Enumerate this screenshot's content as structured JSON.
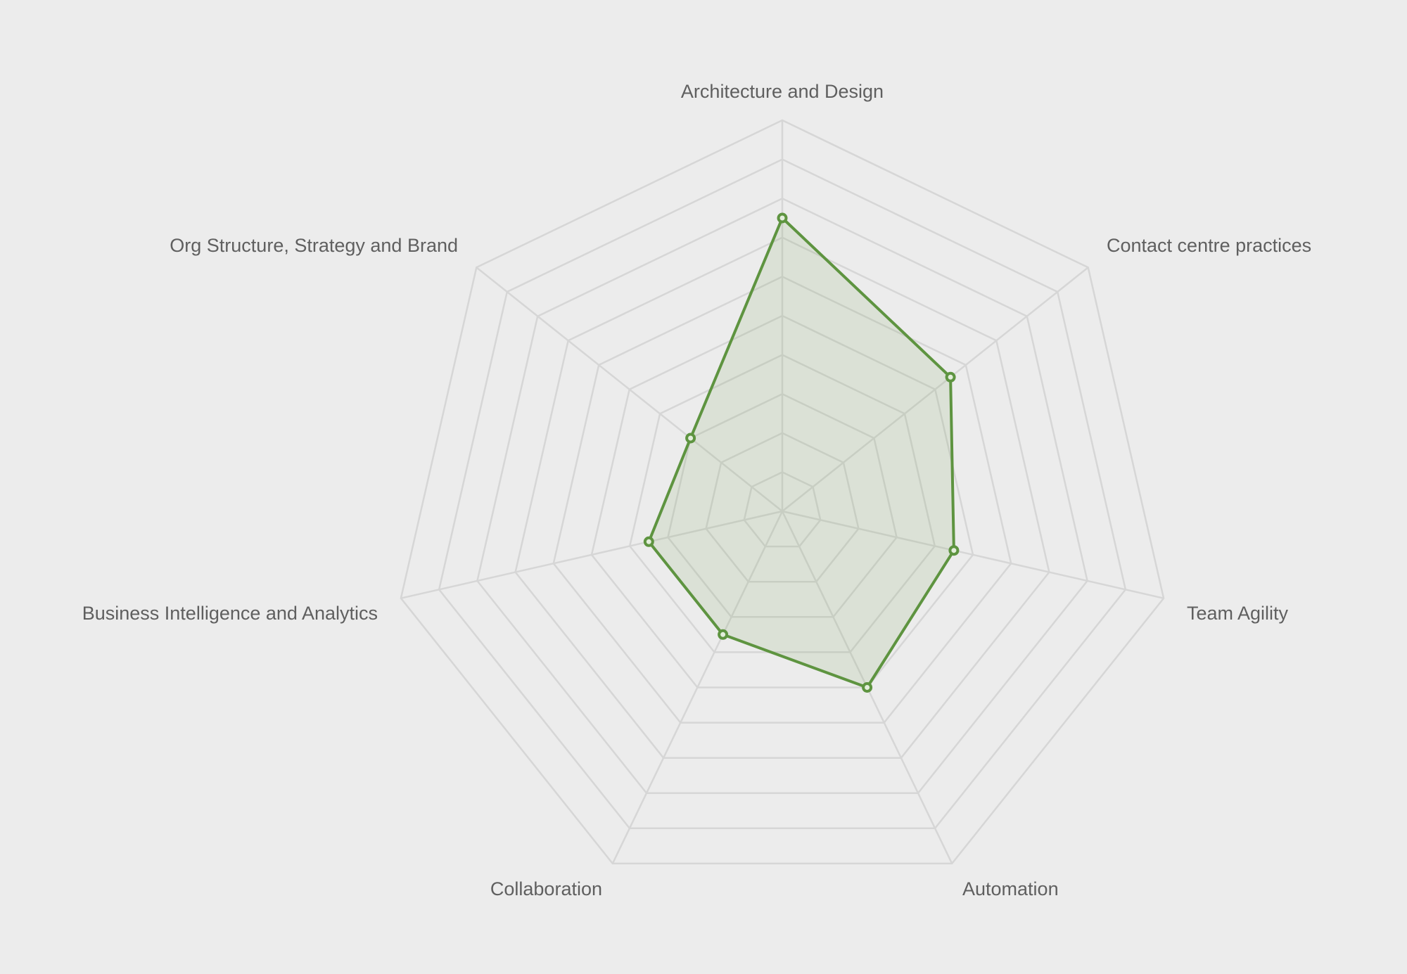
{
  "chart_data": {
    "type": "radar",
    "axes": [
      "Architecture and Design",
      "Contact centre practices",
      "Team Agility",
      "Automation",
      "Collaboration",
      "Business Intelligence and Analytics",
      "Org Structure, Strategy and Brand"
    ],
    "scale": {
      "min": 0,
      "max": 10,
      "rings": 10,
      "grid": true,
      "axis_labels_shown": false
    },
    "series": [
      {
        "values": [
          7.5,
          5.5,
          4.5,
          5.0,
          3.5,
          3.5,
          3.0
        ],
        "color": "#5e9440",
        "fill": "#6a9a48",
        "fill_opacity": 0.13
      }
    ],
    "legend": "none"
  },
  "colors": {
    "background": "#ececec",
    "grid": "#d6d6d6",
    "label_text": "#5f5f5f"
  }
}
